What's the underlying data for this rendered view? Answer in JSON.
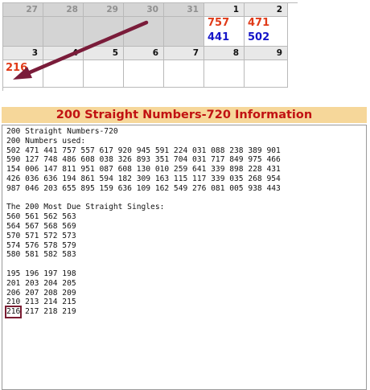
{
  "calendar": {
    "row1": {
      "days": [
        "27",
        "28",
        "29",
        "30",
        "31",
        "1",
        "2"
      ],
      "entries": {
        "1": {
          "red": "757",
          "blue": "441"
        },
        "2": {
          "red": "471",
          "blue": "502"
        }
      }
    },
    "row2": {
      "days": [
        "3",
        "4",
        "5",
        "6",
        "7",
        "8",
        "9"
      ],
      "entries": {
        "3": {
          "red": "216"
        }
      }
    }
  },
  "panel": {
    "title": "200 Straight Numbers-720 Information",
    "lines": [
      "200 Straight Numbers-720",
      "200 Numbers used:",
      "502 471 441 757 557 617 920 945 591 224 031 088 238 389 901",
      "590 127 748 486 608 038 326 893 351 704 031 717 849 975 466",
      "154 006 147 811 951 087 608 130 010 259 641 339 898 228 431",
      "426 036 636 194 861 594 182 309 163 115 117 339 035 268 954",
      "987 046 203 655 895 159 636 109 162 549 276 081 005 938 443",
      "",
      "The 200 Most Due Straight Singles:",
      "560 561 562 563",
      "564 567 568 569",
      "570 571 572 573",
      "574 576 578 579",
      "580 581 582 583",
      "",
      "195 196 197 198",
      "201 203 204 205",
      "206 207 208 209",
      "210 213 214 215"
    ],
    "last_line": {
      "highlight": "216",
      "rest": " 217 218 219"
    }
  },
  "colors": {
    "red_number": "#e03a18",
    "blue_number": "#1515c8",
    "arrow": "#7a1c3a",
    "title_bg": "#f6d79a",
    "title_text": "#c11212"
  }
}
